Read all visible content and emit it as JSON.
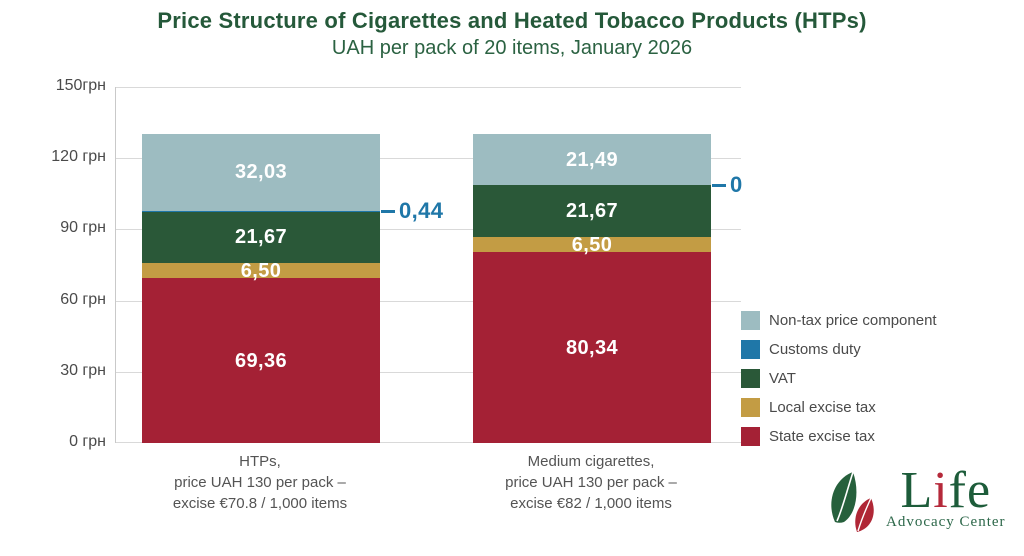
{
  "chart_data": {
    "type": "bar",
    "stacked": true,
    "title": "Price Structure of Cigarettes and Heated Tobacco Products (HTPs)",
    "subtitle": "UAH per pack of 20 items, January 2026",
    "unit": "UAH (грн) per pack",
    "ylim": [
      0,
      150
    ],
    "grid": true,
    "yticks": [
      {
        "value": 150,
        "label": "150грн"
      },
      {
        "value": 120,
        "label": "120 грн"
      },
      {
        "value": 90,
        "label": "90 грн"
      },
      {
        "value": 60,
        "label": "60 грн"
      },
      {
        "value": 30,
        "label": "30 грн"
      },
      {
        "value": 0,
        "label": "0 грн"
      }
    ],
    "categories": [
      "HTPs",
      "Medium cigarettes"
    ],
    "category_captions": [
      [
        "HTPs,",
        "price UAH 130 per pack –",
        "excise €70.8 / 1,000 items"
      ],
      [
        "Medium cigarettes,",
        "price UAH 130 per pack –",
        "excise €82 / 1,000 items"
      ]
    ],
    "totals": [
      130,
      130
    ],
    "series": [
      {
        "name": "State excise tax",
        "color": "#a42135",
        "values": [
          69.36,
          80.34
        ],
        "labels": [
          "69,36",
          "80,34"
        ],
        "callout": false
      },
      {
        "name": "Local excise tax",
        "color": "#c39c44",
        "values": [
          6.5,
          6.5
        ],
        "labels": [
          "6,50",
          "6,50"
        ],
        "callout": false
      },
      {
        "name": "VAT",
        "color": "#2a5838",
        "values": [
          21.67,
          21.67
        ],
        "labels": [
          "21,67",
          "21,67"
        ],
        "callout": false
      },
      {
        "name": "Customs duty",
        "color": "#1f77a8",
        "values": [
          0.44,
          0
        ],
        "labels": [
          "0,44",
          "0"
        ],
        "callout": true
      },
      {
        "name": "Non-tax price component",
        "color": "#9dbcc1",
        "values": [
          32.03,
          21.49
        ],
        "labels": [
          "32,03",
          "21,49"
        ],
        "callout": false
      }
    ],
    "legend": [
      {
        "label": "Non-tax price component",
        "color": "#9dbcc1"
      },
      {
        "label": "Customs duty",
        "color": "#1f77a8"
      },
      {
        "label": "VAT",
        "color": "#2a5838"
      },
      {
        "label": "Local excise tax",
        "color": "#c39c44"
      },
      {
        "label": "State excise tax",
        "color": "#a42135"
      }
    ],
    "legend_position": "bottom-right",
    "colors": {
      "title_green": "#25593a",
      "callout_blue": "#1f77a8",
      "axis_text": "#4a4a4a",
      "gridline": "#d9d9d9"
    }
  },
  "logo": {
    "brand_l": "L",
    "brand_i": "i",
    "brand_fe": "fe",
    "tagline": "Advocacy Center"
  }
}
